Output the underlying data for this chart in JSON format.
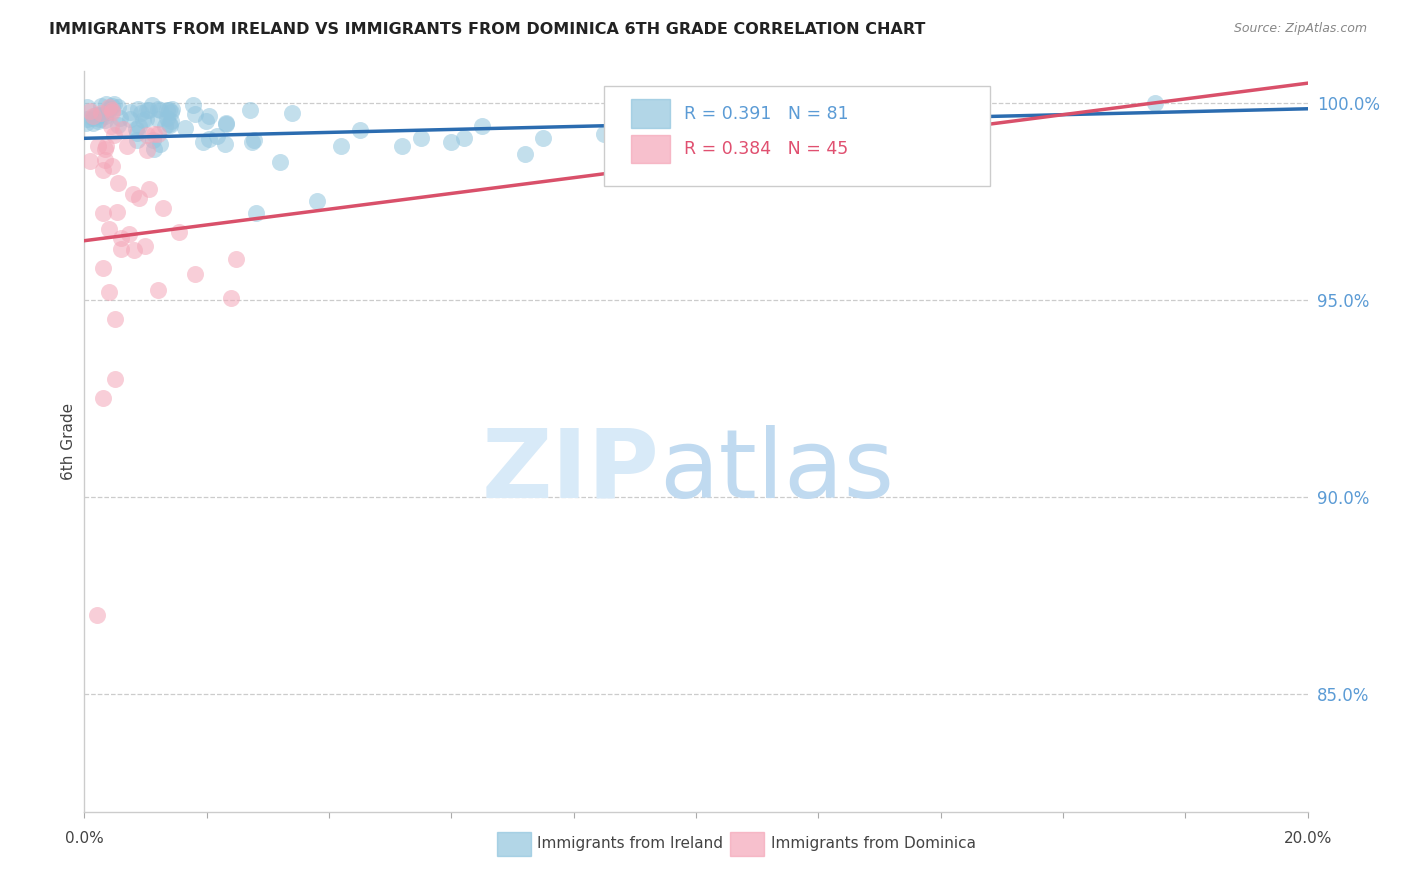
{
  "title": "IMMIGRANTS FROM IRELAND VS IMMIGRANTS FROM DOMINICA 6TH GRADE CORRELATION CHART",
  "source": "Source: ZipAtlas.com",
  "ylabel": "6th Grade",
  "right_ytick_labels": [
    "85.0%",
    "90.0%",
    "95.0%",
    "100.0%"
  ],
  "right_ytick_vals": [
    85.0,
    90.0,
    95.0,
    100.0
  ],
  "legend_ireland": "Immigrants from Ireland",
  "legend_dominica": "Immigrants from Dominica",
  "R_ireland": 0.391,
  "N_ireland": 81,
  "R_dominica": 0.384,
  "N_dominica": 45,
  "color_ireland": "#92c5de",
  "color_dominica": "#f4a6b8",
  "trendline_ireland": "#2b6cb0",
  "trendline_dominica": "#d9506a",
  "ymin": 82.0,
  "ymax": 100.8,
  "xmin": 0.0,
  "xmax": 20.0,
  "blue_trend_x": [
    0,
    20
  ],
  "blue_trend_y": [
    99.1,
    99.85
  ],
  "pink_trend_x": [
    0,
    20
  ],
  "pink_trend_y": [
    96.5,
    100.5
  ]
}
